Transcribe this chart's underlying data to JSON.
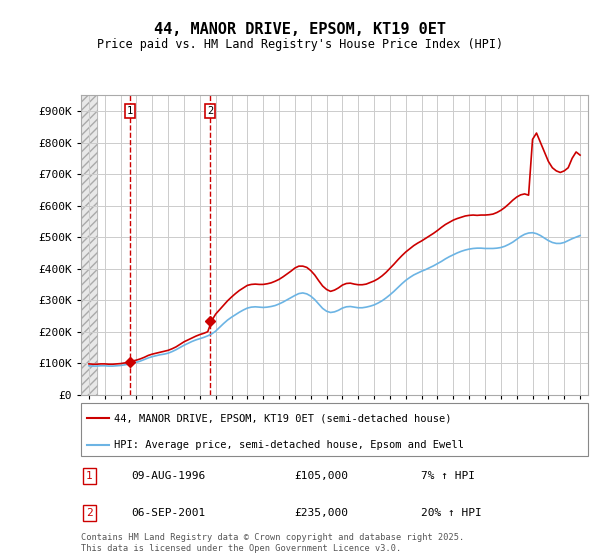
{
  "title": "44, MANOR DRIVE, EPSOM, KT19 0ET",
  "subtitle": "Price paid vs. HM Land Registry's House Price Index (HPI)",
  "legend_line1": "44, MANOR DRIVE, EPSOM, KT19 0ET (semi-detached house)",
  "legend_line2": "HPI: Average price, semi-detached house, Epsom and Ewell",
  "annotation1_date": "09-AUG-1996",
  "annotation1_price": "£105,000",
  "annotation1_hpi": "7% ↑ HPI",
  "annotation2_date": "06-SEP-2001",
  "annotation2_price": "£235,000",
  "annotation2_hpi": "20% ↑ HPI",
  "footnote": "Contains HM Land Registry data © Crown copyright and database right 2025.\nThis data is licensed under the Open Government Licence v3.0.",
  "sale_color": "#cc0000",
  "hpi_color": "#6cb4e4",
  "grid_color": "#cccccc",
  "ylim": [
    0,
    950000
  ],
  "yticks": [
    0,
    100000,
    200000,
    300000,
    400000,
    500000,
    600000,
    700000,
    800000,
    900000
  ],
  "xmin_year": 1993.5,
  "xmax_year": 2025.5,
  "xtick_years": [
    1994,
    1995,
    1996,
    1997,
    1998,
    1999,
    2000,
    2001,
    2002,
    2003,
    2004,
    2005,
    2006,
    2007,
    2008,
    2009,
    2010,
    2011,
    2012,
    2013,
    2014,
    2015,
    2016,
    2017,
    2018,
    2019,
    2020,
    2021,
    2022,
    2023,
    2024,
    2025
  ],
  "sale1_x": 1996.6,
  "sale1_y": 105000,
  "sale2_x": 2001.67,
  "sale2_y": 235000,
  "bg_color": "#ffffff"
}
